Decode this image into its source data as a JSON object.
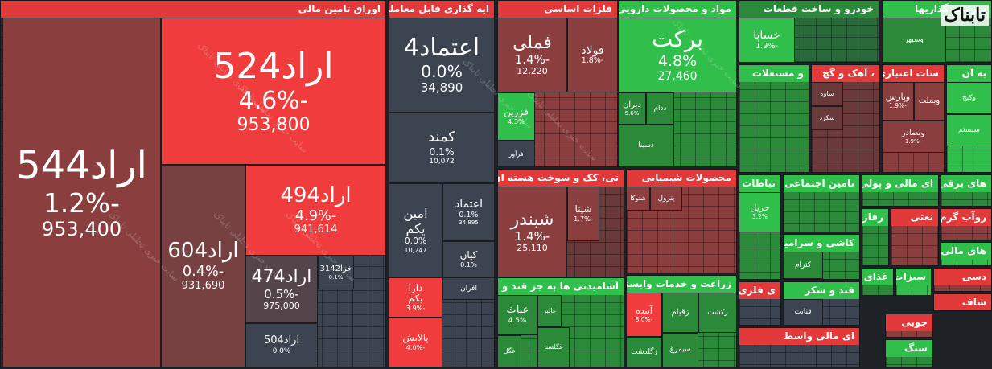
{
  "logo": "تابناک",
  "watermark": "سایت خبری تحلیلی تابناک",
  "sectors": [
    {
      "title": "اوراق تامين مالی",
      "tiles": [
        {
          "name": "اراد544",
          "change": "-1.2%",
          "volume": "953,400"
        },
        {
          "name": "اراد524",
          "change": "-4.6%",
          "volume": "953,800"
        },
        {
          "name": "اراد604",
          "change": "-0.4%",
          "volume": "931,690"
        },
        {
          "name": "اراد494",
          "change": "-4.9%",
          "volume": "941,614"
        },
        {
          "name": "اراد474",
          "change": "-0.5%",
          "volume": "975,000"
        },
        {
          "name": "اراد504",
          "change": "0.0%"
        },
        {
          "name": "خزا3142",
          "change": "0.1%"
        }
      ]
    },
    {
      "title": "ایه گذاری قابل معامله",
      "tiles": [
        {
          "name": "اعتماد4",
          "change": "0.0%",
          "volume": "34,890"
        },
        {
          "name": "کمند",
          "change": "0.1%",
          "volume": "10,072"
        },
        {
          "name": "امین یکم",
          "change": "0.0%",
          "volume": "10,247"
        },
        {
          "name": "اعتماد",
          "change": "0.1%",
          "volume": "34,895"
        },
        {
          "name": "کیان",
          "change": "0.1%"
        },
        {
          "name": "دارا یکم",
          "change": "-3.9%"
        },
        {
          "name": "پالایش",
          "change": "-4.0%"
        },
        {
          "name": "افران"
        }
      ]
    },
    {
      "title": "فلزات اساسی",
      "tiles": [
        {
          "name": "فملی",
          "change": "-1.4%",
          "volume": "12,220"
        },
        {
          "name": "فولاد",
          "change": "-1.8%"
        },
        {
          "name": "فزرین",
          "change": "4.3%"
        },
        {
          "name": "فرآور"
        }
      ]
    },
    {
      "title": "تی، کک و سوخت هسته ای",
      "tiles": [
        {
          "name": "شبندر",
          "change": "-1.4%",
          "volume": "25,110"
        },
        {
          "name": "شپنا",
          "change": "-1.7%"
        }
      ]
    },
    {
      "title": "محصولات شیمیایی",
      "tiles": [
        {
          "name": "شتوکا"
        },
        {
          "name": "پترول"
        }
      ]
    },
    {
      "title": "آشامیدنی ها به جز قند و شکر",
      "tiles": [
        {
          "name": "غیاث",
          "change": "4.5%"
        },
        {
          "name": "غالبر"
        },
        {
          "name": "غگلستا"
        },
        {
          "name": "غگل"
        }
      ]
    },
    {
      "title": "زراعت و خدمات وابسته",
      "tiles": [
        {
          "name": "آینده",
          "change": "-8.0%"
        },
        {
          "name": "زقیام"
        },
        {
          "name": "زکشت"
        },
        {
          "name": "سیمرغ"
        },
        {
          "name": "زگلدشت"
        }
      ]
    },
    {
      "title": "مواد و محصولات دارویی",
      "tiles": [
        {
          "name": "برکت",
          "change": "4.8%",
          "volume": "27,460"
        },
        {
          "name": "دیران",
          "change": "5.6%"
        },
        {
          "name": "ددام"
        },
        {
          "name": "دسینا"
        }
      ]
    },
    {
      "title": "خودرو و ساخت قطعات",
      "tiles": [
        {
          "name": "خساپا",
          "change": "-1.9%"
        }
      ]
    },
    {
      "title": "سرمایه گذاریها",
      "tiles": [
        {
          "name": "وسپهر"
        }
      ]
    },
    {
      "title": "و مستغلات",
      "tiles": []
    },
    {
      "title": "، آهک و گچ",
      "tiles": [
        {
          "name": "ساوه"
        },
        {
          "name": "سکرد"
        }
      ]
    },
    {
      "title": "سات اعتباری",
      "tiles": [
        {
          "name": "وپارس",
          "change": "-1.9%"
        },
        {
          "name": "وبملت"
        },
        {
          "name": "وبصادر",
          "change": "-1.9%"
        }
      ]
    },
    {
      "title": "به آن",
      "tiles": [
        {
          "name": "وکیخ"
        },
        {
          "name": "سیستم"
        }
      ]
    },
    {
      "title": "تباطات",
      "tiles": [
        {
          "name": "حریل",
          "change": "3.2%"
        }
      ]
    },
    {
      "title": "تامین اجتماعی",
      "tiles": []
    },
    {
      "title": "کاشی و سرامیک",
      "tiles": [
        {
          "name": "کترام"
        }
      ]
    },
    {
      "title": "قند و شکر",
      "tiles": [
        {
          "name": "قثابت"
        }
      ]
    },
    {
      "title": "ی فلزی",
      "tiles": []
    },
    {
      "title": "ای مالی واسط",
      "tiles": []
    },
    {
      "title": "ای مالی و پولی",
      "tiles": []
    },
    {
      "title": "های برقی",
      "tiles": []
    },
    {
      "title": "رفازی",
      "tiles": []
    },
    {
      "title": "نعتی",
      "tiles": []
    },
    {
      "title": "روآب گرم",
      "tiles": []
    },
    {
      "title": "های مالی",
      "tiles": []
    },
    {
      "title": "غذای",
      "tiles": []
    },
    {
      "title": "سیزات",
      "tiles": []
    },
    {
      "title": "دسی",
      "tiles": []
    },
    {
      "title": "شاف",
      "tiles": []
    },
    {
      "title": "چوبی",
      "tiles": []
    },
    {
      "title": "سنگ",
      "tiles": []
    }
  ]
}
